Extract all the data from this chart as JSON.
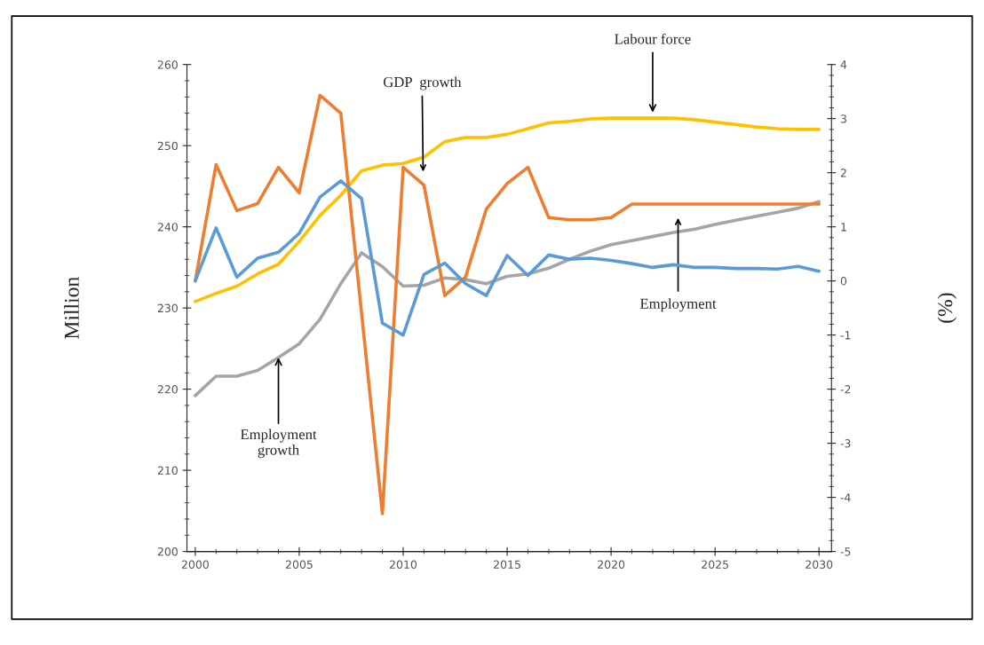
{
  "chart_data": {
    "type": "line",
    "ylabel": "Million",
    "y2label": "(%)",
    "x": [
      2000,
      2001,
      2002,
      2003,
      2004,
      2005,
      2006,
      2007,
      2008,
      2009,
      2010,
      2011,
      2012,
      2013,
      2014,
      2015,
      2016,
      2017,
      2018,
      2019,
      2020,
      2021,
      2022,
      2023,
      2024,
      2025,
      2026,
      2027,
      2028,
      2029,
      2030
    ],
    "series": [
      {
        "color": "#ed7d31",
        "axis": "y2",
        "values": [
          0.0,
          2.15,
          1.3,
          1.43,
          2.1,
          1.63,
          3.43,
          3.1,
          -0.6,
          -4.3,
          2.1,
          1.77,
          -0.27,
          0.07,
          1.33,
          1.8,
          2.1,
          1.17,
          1.13,
          1.13,
          1.17,
          1.42,
          1.42,
          1.42,
          1.42,
          1.42,
          1.42,
          1.42,
          1.42,
          1.42,
          1.42
        ]
      },
      {
        "color": "#5b9bd5",
        "axis": "y2",
        "values": [
          0.0,
          0.98,
          0.07,
          0.42,
          0.53,
          0.88,
          1.55,
          1.85,
          1.52,
          -0.78,
          -1.0,
          0.12,
          0.33,
          -0.05,
          -0.27,
          0.47,
          0.1,
          0.48,
          0.4,
          0.42,
          0.38,
          0.32,
          0.25,
          0.3,
          0.25,
          0.25,
          0.23,
          0.23,
          0.22,
          0.27,
          0.18
        ]
      },
      {
        "color": "#ffc000",
        "values": [
          230.8,
          231.8,
          232.7,
          234.2,
          235.4,
          238.2,
          241.4,
          243.9,
          246.9,
          247.6,
          247.8,
          248.6,
          250.5,
          251.0,
          251.0,
          251.4,
          252.1,
          252.8,
          253.0,
          253.3,
          253.4,
          253.4,
          253.4,
          253.4,
          253.2,
          252.9,
          252.6,
          252.3,
          252.1,
          252.0,
          252.0
        ]
      },
      {
        "color": "#a5a5a5",
        "values": [
          219.2,
          221.6,
          221.6,
          222.3,
          223.9,
          225.6,
          228.6,
          233.0,
          236.8,
          235.1,
          232.7,
          232.8,
          233.7,
          233.5,
          233.0,
          233.9,
          234.2,
          234.9,
          236.0,
          237.0,
          237.8,
          238.3,
          238.8,
          239.3,
          239.7,
          240.3,
          240.8,
          241.3,
          241.8,
          242.3,
          243.1
        ]
      }
    ],
    "xlim": [
      1999.6,
      2030.6
    ],
    "xticks": [
      2000,
      2005,
      2010,
      2015,
      2020,
      2025,
      2030
    ],
    "ylim": [
      200,
      260
    ],
    "yticks": [
      200,
      210,
      220,
      230,
      240,
      250,
      260
    ],
    "y2lim": [
      -5,
      4
    ],
    "y2ticks": [
      -5,
      -4,
      -3,
      -2,
      -1,
      0,
      1,
      2,
      3,
      4
    ],
    "annotations": [
      "GDP  growth",
      {
        "text": "Labour force",
        "x": 2022,
        "y": 253.8
      },
      "Employment",
      {
        "text": "Employment\ngrowth",
        "x": 2004,
        "y": 224.2
      }
    ],
    "grid": false,
    "legend": false,
    "marker": "none",
    "line_style": "solid"
  }
}
